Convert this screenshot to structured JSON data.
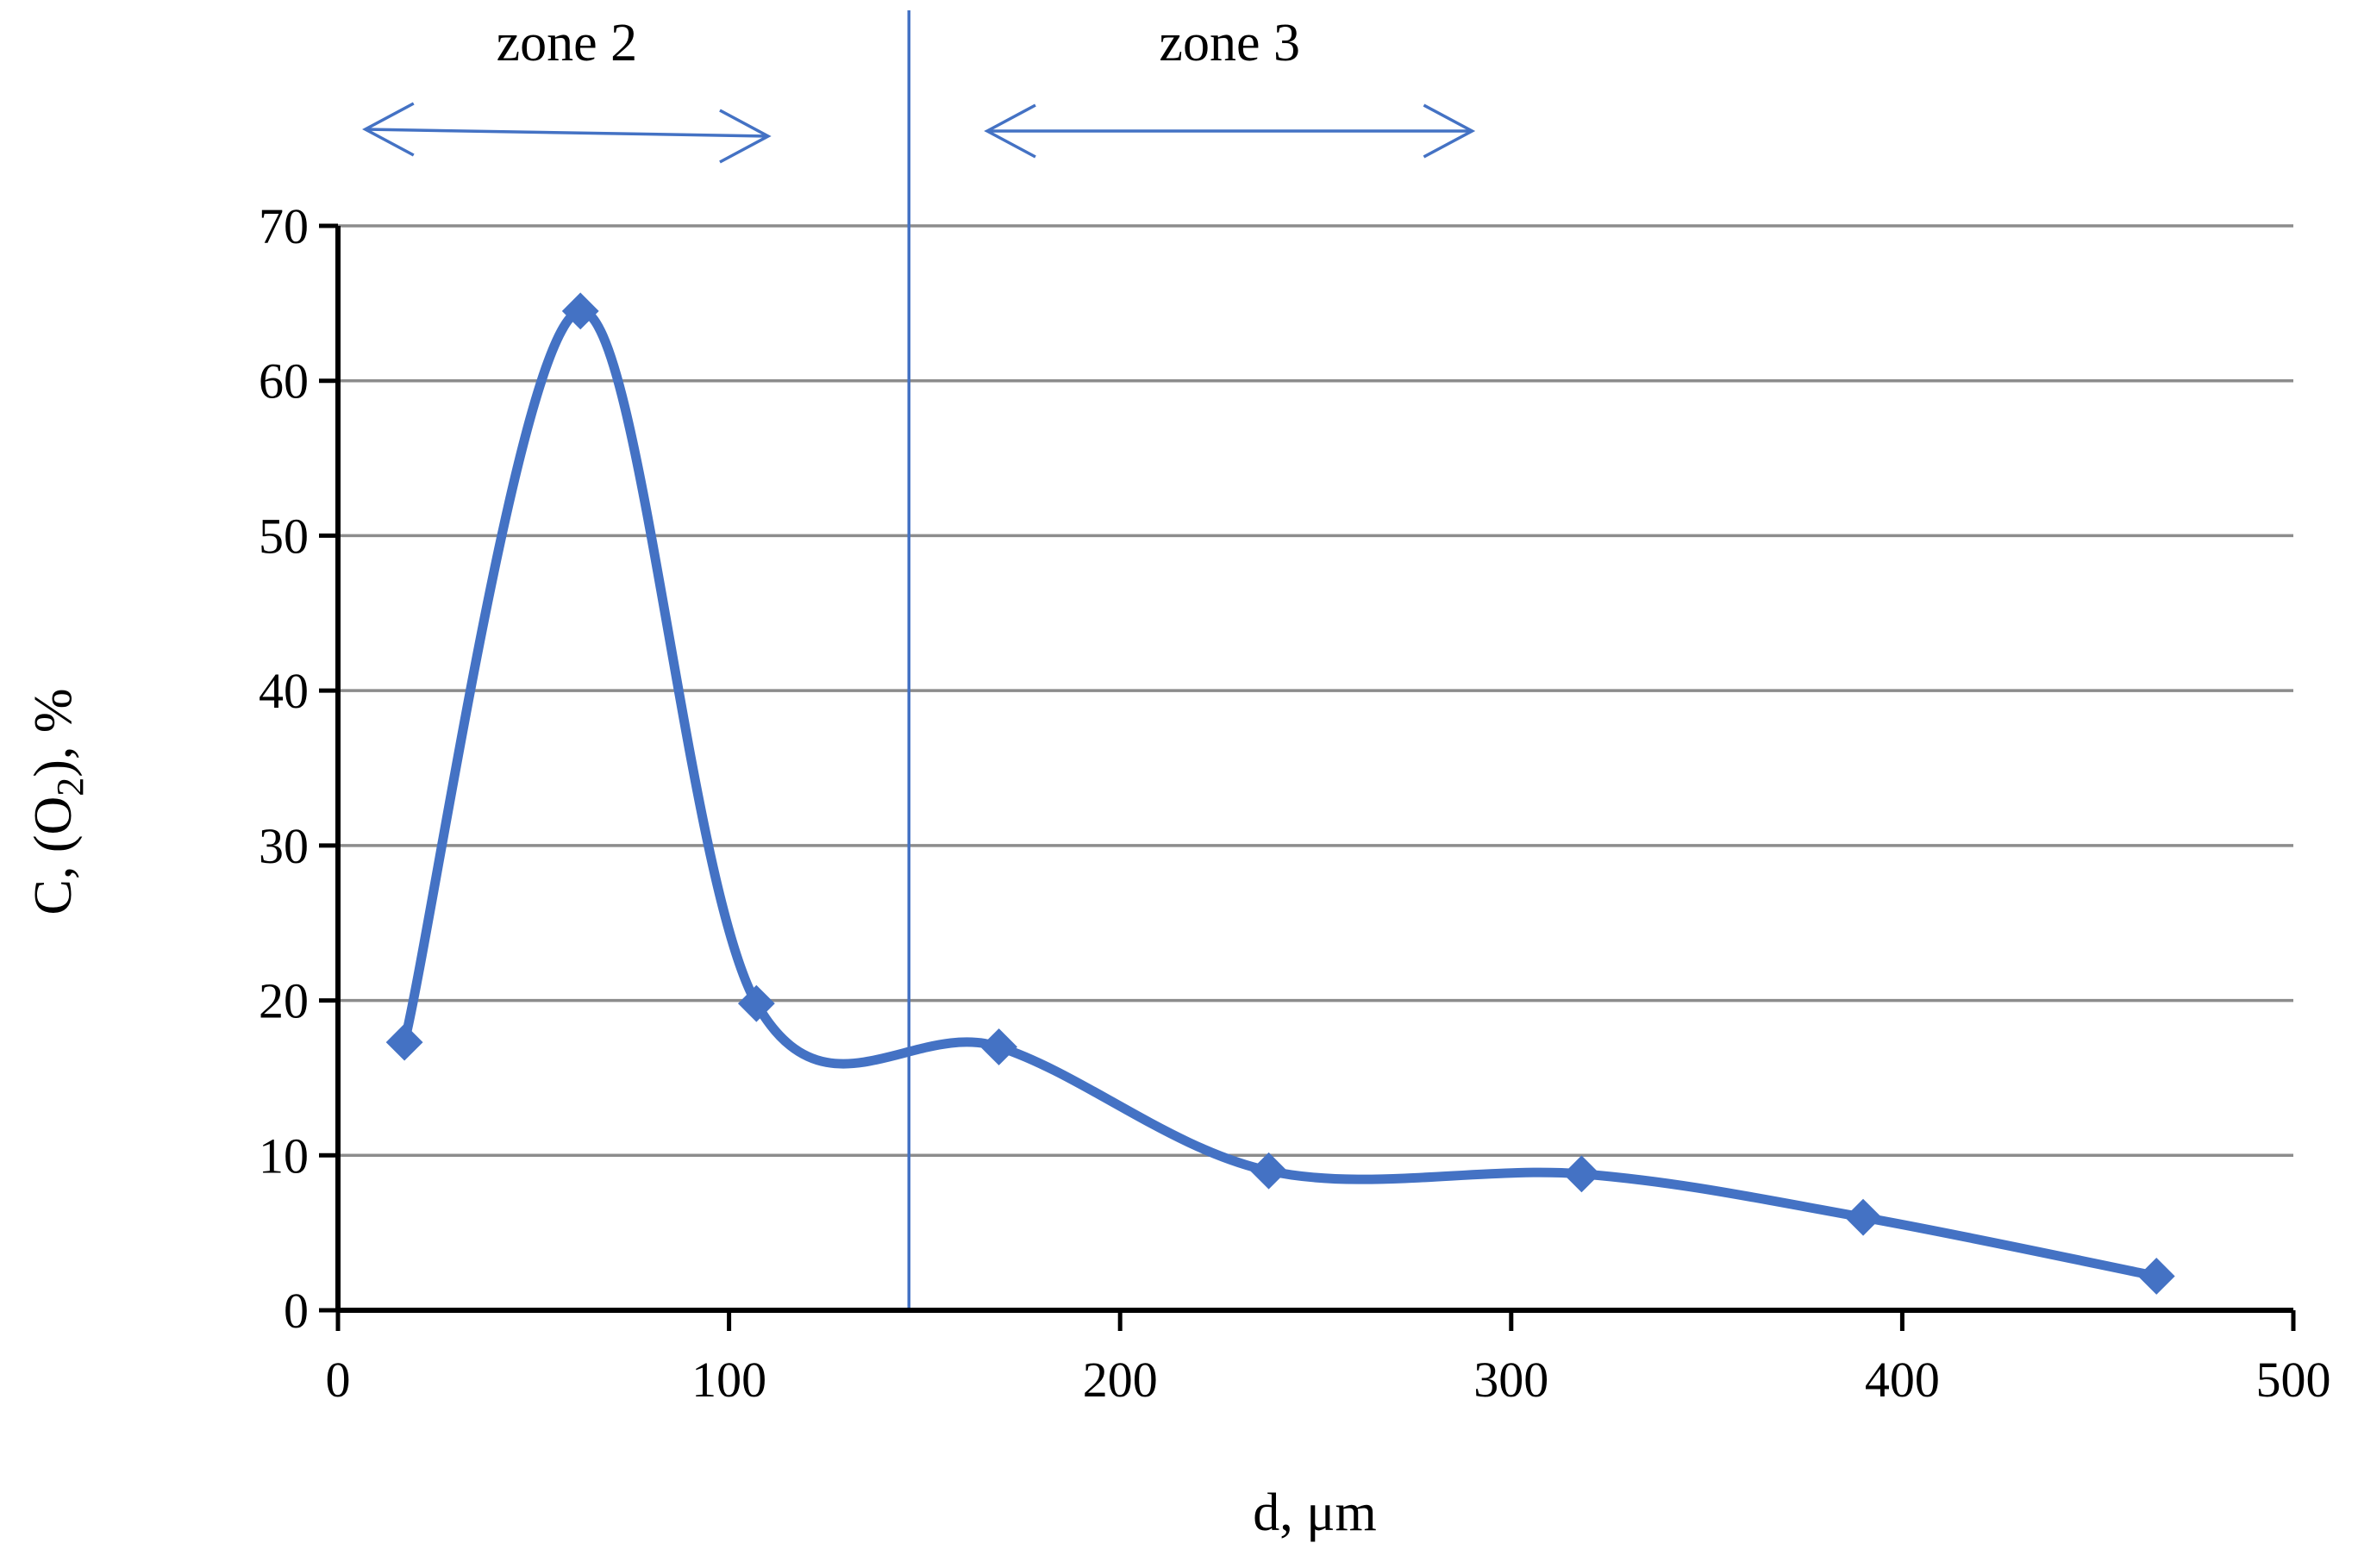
{
  "chart_data": {
    "type": "line",
    "title": "",
    "xlabel": "d, μm",
    "ylabel": {
      "main": "C, (O",
      "sub": "2",
      "tail": "),  %"
    },
    "xlim": [
      0,
      500
    ],
    "ylim": [
      0,
      70
    ],
    "x_ticks": [
      "0",
      "100",
      "200",
      "300",
      "400",
      "500"
    ],
    "y_ticks": [
      "0",
      "10",
      "20",
      "30",
      "40",
      "50",
      "60",
      "70"
    ],
    "grid": true,
    "smooth": true,
    "marker": "diamond",
    "series_color": "#4472C4",
    "series": [
      {
        "x": [
          17,
          62,
          107,
          169,
          238,
          318,
          390,
          465
        ],
        "y": [
          17.3,
          64.5,
          19.8,
          17.0,
          9.0,
          8.8,
          6.0,
          2.2
        ]
      }
    ],
    "divider_x": 146,
    "annotations": [
      {
        "label": "zone 2",
        "x_from": 7,
        "x_to": 110
      },
      {
        "label": "zone 3",
        "x_from": 166,
        "x_to": 290
      }
    ]
  }
}
